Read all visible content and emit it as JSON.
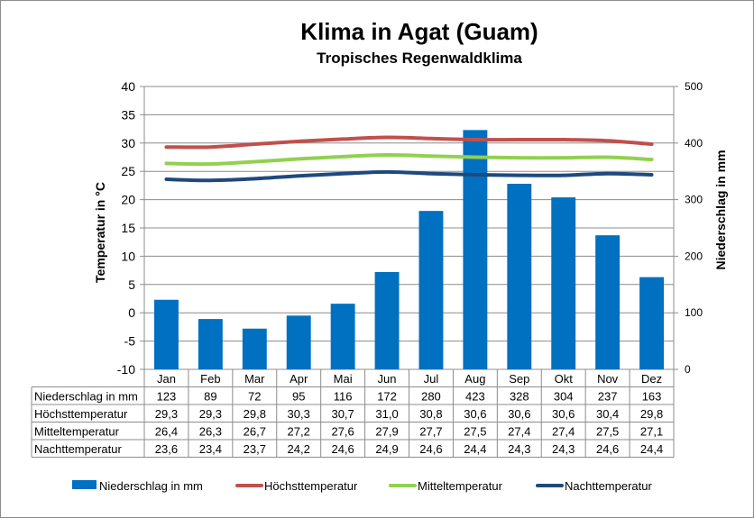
{
  "title": "Klima in Agat (Guam)",
  "subtitle": "Tropisches Regenwaldklima",
  "chart_data": {
    "type": "bar",
    "categories": [
      "Jan",
      "Feb",
      "Mar",
      "Apr",
      "Mai",
      "Jun",
      "Jul",
      "Aug",
      "Sep",
      "Okt",
      "Nov",
      "Dez"
    ],
    "y_left": {
      "label": "Temperatur in °C",
      "range": [
        -10,
        40
      ],
      "ticks": [
        "-10",
        "-5",
        "0",
        "5",
        "10",
        "15",
        "20",
        "25",
        "30",
        "35",
        "40"
      ]
    },
    "y_right": {
      "label": "Niederschlag in mm",
      "range": [
        0,
        500
      ],
      "ticks": [
        "0",
        "100",
        "200",
        "300",
        "400",
        "500"
      ]
    },
    "grid": true,
    "legend_position": "bottom",
    "series": [
      {
        "name": "Niederschlag in mm",
        "type": "bar",
        "axis": "right",
        "color": "#0070C0",
        "values": [
          123,
          89,
          72,
          95,
          116,
          172,
          280,
          423,
          328,
          304,
          237,
          163
        ],
        "labels": [
          "123",
          "89",
          "72",
          "95",
          "116",
          "172",
          "280",
          "423",
          "328",
          "304",
          "237",
          "163"
        ]
      },
      {
        "name": "Höchsttemperatur",
        "type": "line",
        "axis": "left",
        "color": "#C0504D",
        "values": [
          29.3,
          29.3,
          29.8,
          30.3,
          30.7,
          31.0,
          30.8,
          30.6,
          30.6,
          30.6,
          30.4,
          29.8
        ],
        "labels": [
          "29,3",
          "29,3",
          "29,8",
          "30,3",
          "30,7",
          "31,0",
          "30,8",
          "30,6",
          "30,6",
          "30,6",
          "30,4",
          "29,8"
        ]
      },
      {
        "name": "Mitteltemperatur",
        "type": "line",
        "axis": "left",
        "color": "#92D050",
        "values": [
          26.4,
          26.3,
          26.7,
          27.2,
          27.6,
          27.9,
          27.7,
          27.5,
          27.4,
          27.4,
          27.5,
          27.1
        ],
        "labels": [
          "26,4",
          "26,3",
          "26,7",
          "27,2",
          "27,6",
          "27,9",
          "27,7",
          "27,5",
          "27,4",
          "27,4",
          "27,5",
          "27,1"
        ]
      },
      {
        "name": "Nachttemperatur",
        "type": "line",
        "axis": "left",
        "color": "#1F497D",
        "values": [
          23.6,
          23.4,
          23.7,
          24.2,
          24.6,
          24.9,
          24.6,
          24.4,
          24.3,
          24.3,
          24.6,
          24.4
        ],
        "labels": [
          "23,6",
          "23,4",
          "23,7",
          "24,2",
          "24,6",
          "24,9",
          "24,6",
          "24,4",
          "24,3",
          "24,3",
          "24,6",
          "24,4"
        ]
      }
    ]
  }
}
